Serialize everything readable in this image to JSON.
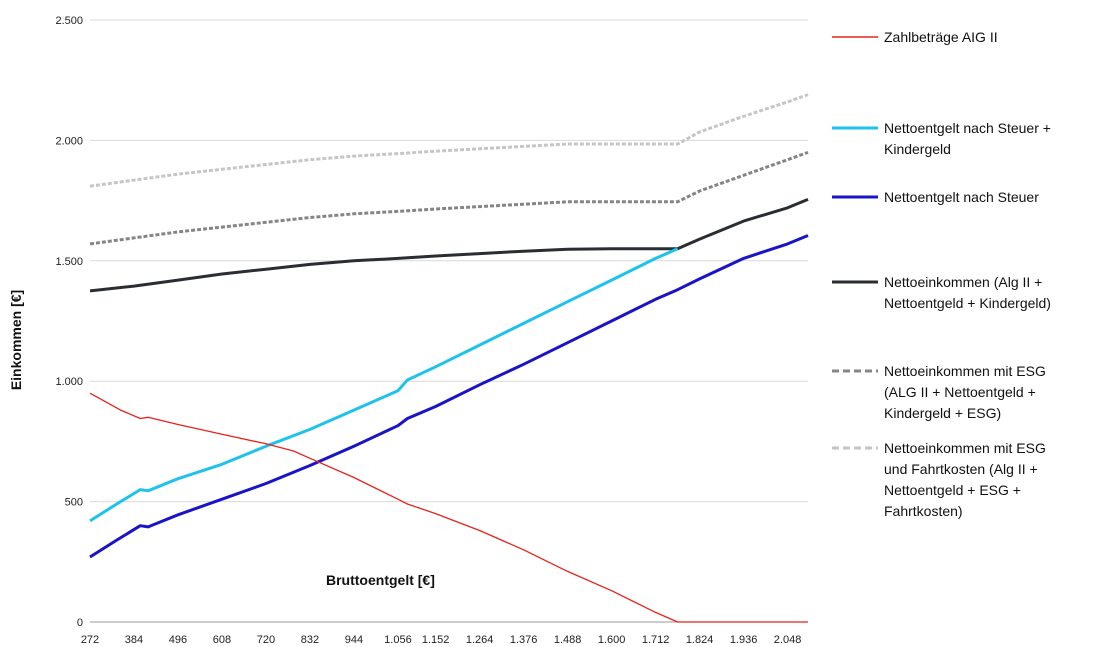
{
  "chart_data": {
    "type": "line",
    "xlabel": "Bruttoentgelt [€]",
    "ylabel": "Einkommen [€]",
    "ylim": [
      0,
      2500
    ],
    "xlim": [
      272,
      2100
    ],
    "grid": "horizontal",
    "legend_position": "right",
    "x_ticks": [
      272,
      384,
      496,
      608,
      720,
      832,
      944,
      1056,
      1152,
      1264,
      1376,
      1488,
      1600,
      1712,
      1824,
      1936,
      2048
    ],
    "x_tick_labels": [
      "272",
      "384",
      "496",
      "608",
      "720",
      "832",
      "944",
      "1.056",
      "1.152",
      "1.264",
      "1.376",
      "1.488",
      "1.600",
      "1.712",
      "1.824",
      "1.936",
      "2.048"
    ],
    "y_ticks": [
      0,
      500,
      1000,
      1500,
      2000,
      2500
    ],
    "y_tick_labels": [
      "0",
      "500",
      "1.000",
      "1.500",
      "2.000",
      "2.500"
    ],
    "series": [
      {
        "name": "Zahlbeträge AIG II",
        "legend_lines": [
          "Zahlbeträge AIG II"
        ],
        "color": "#e8231c",
        "style": "solid",
        "width": 1.3,
        "points": [
          [
            272,
            950
          ],
          [
            350,
            880
          ],
          [
            400,
            845
          ],
          [
            420,
            850
          ],
          [
            496,
            820
          ],
          [
            608,
            780
          ],
          [
            720,
            740
          ],
          [
            790,
            710
          ],
          [
            832,
            680
          ],
          [
            944,
            600
          ],
          [
            1056,
            510
          ],
          [
            1080,
            490
          ],
          [
            1152,
            450
          ],
          [
            1264,
            380
          ],
          [
            1376,
            300
          ],
          [
            1488,
            210
          ],
          [
            1600,
            130
          ],
          [
            1712,
            40
          ],
          [
            1768,
            0
          ],
          [
            2100,
            0
          ]
        ]
      },
      {
        "name": "Nettoentgelt nach Steuer + Kindergeld",
        "legend_lines": [
          "Nettoentgelt nach Steuer +",
          "Kindergeld"
        ],
        "color": "#1fc2ec",
        "style": "solid",
        "width": 3,
        "points": [
          [
            272,
            420
          ],
          [
            340,
            490
          ],
          [
            400,
            550
          ],
          [
            420,
            545
          ],
          [
            496,
            595
          ],
          [
            608,
            655
          ],
          [
            720,
            730
          ],
          [
            832,
            800
          ],
          [
            944,
            880
          ],
          [
            1056,
            960
          ],
          [
            1080,
            1005
          ],
          [
            1152,
            1060
          ],
          [
            1264,
            1150
          ],
          [
            1376,
            1240
          ],
          [
            1488,
            1330
          ],
          [
            1600,
            1420
          ],
          [
            1712,
            1510
          ],
          [
            1768,
            1550
          ]
        ]
      },
      {
        "name": "Nettoentgelt nach Steuer",
        "legend_lines": [
          "Nettoentgelt nach Steuer"
        ],
        "color": "#1a14c8",
        "style": "solid",
        "width": 3,
        "points": [
          [
            272,
            270
          ],
          [
            340,
            340
          ],
          [
            400,
            400
          ],
          [
            420,
            395
          ],
          [
            496,
            445
          ],
          [
            608,
            510
          ],
          [
            720,
            575
          ],
          [
            832,
            650
          ],
          [
            944,
            730
          ],
          [
            1056,
            815
          ],
          [
            1080,
            845
          ],
          [
            1152,
            895
          ],
          [
            1264,
            985
          ],
          [
            1376,
            1070
          ],
          [
            1488,
            1160
          ],
          [
            1600,
            1250
          ],
          [
            1712,
            1340
          ],
          [
            1768,
            1380
          ],
          [
            1824,
            1425
          ],
          [
            1936,
            1510
          ],
          [
            2048,
            1570
          ],
          [
            2100,
            1605
          ]
        ]
      },
      {
        "name": "Nettoeinkommen (Alg II + Nettoentgeld + Kindergeld)",
        "legend_lines": [
          "Nettoeinkommen (Alg II +",
          "Nettoentgeld + Kindergeld)"
        ],
        "color": "#2a2e33",
        "style": "solid",
        "width": 3,
        "points": [
          [
            272,
            1375
          ],
          [
            384,
            1395
          ],
          [
            496,
            1420
          ],
          [
            608,
            1445
          ],
          [
            720,
            1465
          ],
          [
            832,
            1485
          ],
          [
            944,
            1500
          ],
          [
            1056,
            1510
          ],
          [
            1152,
            1520
          ],
          [
            1264,
            1530
          ],
          [
            1376,
            1540
          ],
          [
            1488,
            1548
          ],
          [
            1600,
            1550
          ],
          [
            1712,
            1550
          ],
          [
            1768,
            1550
          ],
          [
            1824,
            1590
          ],
          [
            1936,
            1665
          ],
          [
            2048,
            1720
          ],
          [
            2100,
            1755
          ]
        ]
      },
      {
        "name": "Nettoeinkommen mit ESG (ALG II + Nettoentgeld + Kindergeld + ESG)",
        "legend_lines": [
          "Nettoeinkommen mit ESG",
          "(ALG II + Nettoentgeld +",
          "Kindergeld + ESG)"
        ],
        "color": "#858585",
        "style": "dashed",
        "width": 3,
        "points": [
          [
            272,
            1570
          ],
          [
            384,
            1595
          ],
          [
            496,
            1620
          ],
          [
            608,
            1640
          ],
          [
            720,
            1660
          ],
          [
            832,
            1680
          ],
          [
            944,
            1695
          ],
          [
            1056,
            1705
          ],
          [
            1152,
            1715
          ],
          [
            1264,
            1725
          ],
          [
            1376,
            1735
          ],
          [
            1488,
            1745
          ],
          [
            1600,
            1745
          ],
          [
            1712,
            1745
          ],
          [
            1768,
            1745
          ],
          [
            1824,
            1790
          ],
          [
            1936,
            1855
          ],
          [
            2048,
            1920
          ],
          [
            2100,
            1950
          ]
        ]
      },
      {
        "name": "Nettoeinkommen mit ESG und Fahrtkosten (Alg II + Nettoentgeld + ESG + Fahrtkosten)",
        "legend_lines": [
          "Nettoeinkommen mit ESG",
          "und Fahrtkosten (Alg II +",
          "Nettoentgeld + ESG +",
          "Fahrtkosten)"
        ],
        "color": "#c6c6c6",
        "style": "dashed",
        "width": 3,
        "points": [
          [
            272,
            1810
          ],
          [
            384,
            1835
          ],
          [
            496,
            1860
          ],
          [
            608,
            1880
          ],
          [
            720,
            1900
          ],
          [
            832,
            1920
          ],
          [
            944,
            1935
          ],
          [
            1056,
            1945
          ],
          [
            1152,
            1955
          ],
          [
            1264,
            1965
          ],
          [
            1376,
            1975
          ],
          [
            1488,
            1985
          ],
          [
            1600,
            1985
          ],
          [
            1712,
            1985
          ],
          [
            1768,
            1985
          ],
          [
            1824,
            2035
          ],
          [
            1936,
            2100
          ],
          [
            2048,
            2160
          ],
          [
            2100,
            2190
          ]
        ]
      }
    ]
  }
}
